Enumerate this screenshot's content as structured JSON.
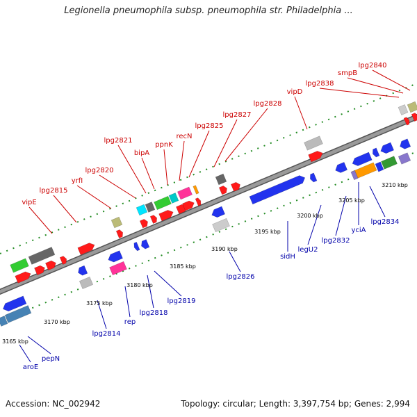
{
  "title": "Legionella pneumophila subsp. pneumophila str. Philadelphia ...",
  "footer": {
    "accession": "Accession: NC_002942",
    "topology": "Topology: circular; Length: 3,397,754 bp; Genes: 2,994"
  },
  "colors": {
    "forward_label": "#cc0000",
    "reverse_label": "#0000aa",
    "strand": "#8a8a8a",
    "tick": "#228b22"
  },
  "kbp_labels": [
    "3165 kbp",
    "3170 kbp",
    "3175 kbp",
    "3180 kbp",
    "3185 kbp",
    "3190 kbp",
    "3195 kbp",
    "3200 kbp",
    "3205 kbp",
    "3210 kbp"
  ],
  "forward_labels": [
    "vipE",
    "lpg2815",
    "yrfI",
    "lpg2820",
    "lpg2821",
    "bipA",
    "ppnK",
    "recN",
    "lpg2825",
    "lpg2827",
    "lpg2828",
    "vipD",
    "lpg2838",
    "smpB",
    "lpg2840"
  ],
  "reverse_labels": [
    "aroE",
    "pepN",
    "lpg2814",
    "rep",
    "lpg2818",
    "lpg2819",
    "lpg2826",
    "sidH",
    "legU2",
    "lpg2832",
    "yciA",
    "lpg2834"
  ]
}
